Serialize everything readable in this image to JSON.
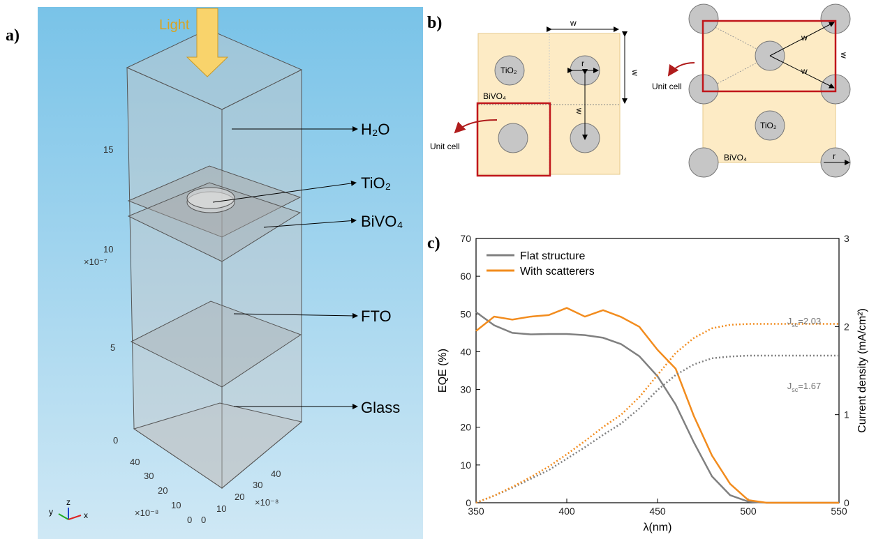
{
  "panel_a": {
    "label": "a)",
    "light": "Light",
    "layers": [
      "H₂O",
      "TiO₂",
      "BiVO₄",
      "FTO",
      "Glass"
    ],
    "z_ticks": [
      "15",
      "10",
      "5",
      "0"
    ],
    "z_scale": "×10⁻⁷",
    "y_ticks": [
      "40",
      "30",
      "20",
      "10",
      "0"
    ],
    "x_ticks": [
      "0",
      "10",
      "20",
      "30",
      "40"
    ],
    "xy_scale": "×10⁻⁸",
    "axes": [
      "z",
      "y",
      "x"
    ]
  },
  "panel_b": {
    "label": "b)",
    "square": {
      "w_top": "w",
      "w_side": "w",
      "w_mid": "w",
      "r": "r",
      "scatterer": "TiO₂",
      "matrix": "BiVO₄",
      "unit_cell": "Unit cell"
    },
    "hexagonal": {
      "w_upper": "w",
      "w_lower": "w",
      "w_side": "w",
      "r": "r",
      "scatterer": "TiO₂",
      "matrix": "BiVO₄",
      "unit_cell": "Unit cell"
    }
  },
  "panel_c": {
    "label": "c)"
  },
  "chart_data": {
    "type": "line",
    "xlabel": "λ(nm)",
    "ylabel": "EQE (%)",
    "y2label": "Current density (mA/cm²)",
    "x": [
      350,
      360,
      370,
      380,
      390,
      400,
      410,
      420,
      430,
      440,
      450,
      460,
      470,
      480,
      490,
      500,
      510,
      520,
      530,
      540,
      550
    ],
    "xlim": [
      350,
      550
    ],
    "xticks": [
      350,
      400,
      450,
      500,
      550
    ],
    "ylim": [
      0,
      70
    ],
    "yticks": [
      0,
      10,
      20,
      30,
      40,
      50,
      60,
      70
    ],
    "y2lim": [
      0,
      3
    ],
    "y2ticks": [
      0,
      1,
      2,
      3
    ],
    "legend": "upper left",
    "series": [
      {
        "name": "Flat structure",
        "color": "#808080",
        "style": "solid",
        "values": [
          50.5,
          47,
          45,
          44.6,
          44.7,
          44.7,
          44.4,
          43.7,
          42,
          38.8,
          33.5,
          26,
          16,
          7,
          2,
          0.3,
          0,
          0,
          0,
          0,
          0
        ]
      },
      {
        "name": "With scatterers",
        "color": "#f28c1e",
        "style": "solid",
        "values": [
          45.5,
          49.3,
          48.5,
          49.3,
          49.7,
          51.6,
          49.3,
          51,
          49.2,
          46.6,
          40.5,
          35.5,
          23,
          12.5,
          5,
          0.7,
          0,
          0,
          0,
          0,
          0
        ]
      },
      {
        "color": "#808080",
        "style": "dotted",
        "axis": "y2",
        "values": [
          0,
          0.08,
          0.17,
          0.27,
          0.37,
          0.5,
          0.63,
          0.77,
          0.9,
          1.07,
          1.28,
          1.45,
          1.57,
          1.64,
          1.66,
          1.67,
          1.67,
          1.67,
          1.67,
          1.67,
          1.67
        ]
      },
      {
        "color": "#f28c1e",
        "style": "dotted",
        "axis": "y2",
        "values": [
          0,
          0.08,
          0.18,
          0.29,
          0.41,
          0.55,
          0.7,
          0.86,
          1.0,
          1.2,
          1.45,
          1.7,
          1.87,
          1.98,
          2.02,
          2.03,
          2.03,
          2.03,
          2.03,
          2.03,
          2.03
        ]
      }
    ],
    "annotations": [
      {
        "main": "J",
        "sub": "sc",
        "suffix": "=2.03"
      },
      {
        "main": "J",
        "sub": "sc",
        "suffix": "=1.67"
      }
    ]
  }
}
